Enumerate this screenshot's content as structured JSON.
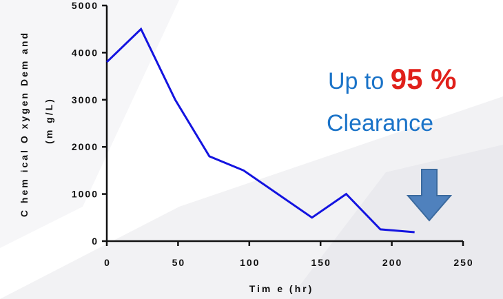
{
  "chart_data": {
    "type": "line",
    "xlabel": "Tim e (hr)",
    "ylabel": "C hem ical O xygen Dem and",
    "ylabel_unit": "(m g/L)",
    "xlim": [
      0,
      250
    ],
    "ylim": [
      0,
      5000
    ],
    "x_ticks": [
      0,
      50,
      100,
      150,
      200,
      250
    ],
    "y_ticks": [
      0,
      1000,
      2000,
      3000,
      4000,
      5000
    ],
    "series": [
      {
        "color": "#1414e0",
        "x": [
          0,
          24,
          48,
          72,
          96,
          120,
          144,
          168,
          192,
          216
        ],
        "y": [
          3800,
          4500,
          3000,
          1800,
          1500,
          1000,
          500,
          1000,
          250,
          190
        ]
      }
    ],
    "grid": false,
    "annotations": {
      "prefix": "Up to",
      "highlight": "95 %",
      "suffix": "Clearance",
      "text_color": "#1a73c8",
      "highlight_color": "#e0201a",
      "arrow_color": "#4f81bd",
      "arrow_icon": "down-arrow-icon"
    }
  }
}
